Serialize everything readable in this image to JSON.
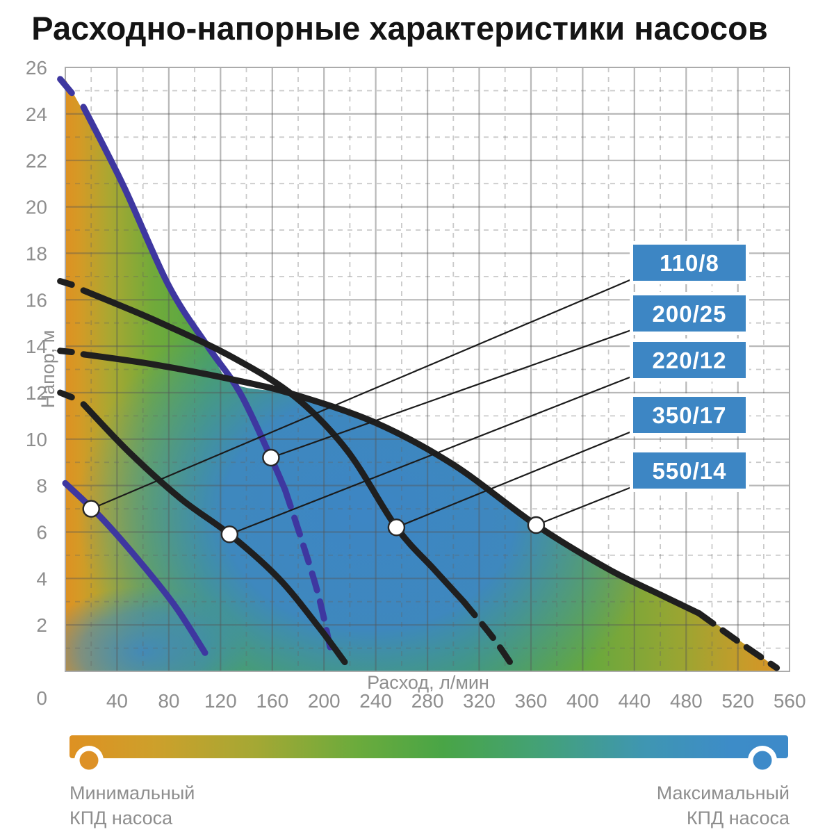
{
  "title": "Расходно-напорные характеристики насосов",
  "axes": {
    "x": {
      "label": "Расход, л/мин",
      "min": 0,
      "max": 560,
      "major_step": 40,
      "minor_step": 20,
      "ticks": [
        40,
        80,
        120,
        160,
        200,
        240,
        280,
        320,
        360,
        400,
        440,
        480,
        520,
        560
      ]
    },
    "y": {
      "label": "Напор, м",
      "min": 0,
      "max": 26,
      "major_step": 2,
      "minor_step": 1,
      "ticks": [
        0,
        2,
        4,
        6,
        8,
        10,
        12,
        14,
        16,
        18,
        20,
        22,
        24,
        26
      ]
    }
  },
  "chart_data": {
    "type": "line",
    "title": "Расходно-напорные характеристики насосов",
    "xlabel": "Расход, л/мин",
    "ylabel": "Напор, м",
    "xlim": [
      0,
      560
    ],
    "ylim": [
      0,
      26
    ],
    "grid": "major solid + minor dashed",
    "legend_position": "right side callout boxes",
    "series": [
      {
        "name": "110/8",
        "max_flow_l_min": 110,
        "max_head_m": 8,
        "color": "#3E37A0",
        "solid": [
          [
            0,
            8.1
          ],
          [
            28,
            6.6
          ],
          [
            58,
            4.7
          ],
          [
            85,
            2.8
          ],
          [
            108,
            0.8
          ]
        ],
        "marker": [
          20,
          7.0
        ]
      },
      {
        "name": "200/25",
        "max_flow_l_min": 200,
        "max_head_m": 25,
        "color": "#3E37A0",
        "start_dash": [
          [
            -4,
            25.5
          ],
          [
            5,
            24.9
          ]
        ],
        "solid": [
          [
            14,
            24.3
          ],
          [
            45,
            20.9
          ],
          [
            80,
            16.6
          ],
          [
            110,
            14.0
          ],
          [
            135,
            12.0
          ],
          [
            159,
            9.2
          ],
          [
            170,
            7.8
          ]
        ],
        "dash_tail": [
          [
            170,
            7.8
          ],
          [
            183,
            5.6
          ],
          [
            196,
            3.2
          ],
          [
            206,
            0.7
          ]
        ],
        "marker": [
          159,
          9.2
        ]
      },
      {
        "name": "220/12",
        "max_flow_l_min": 220,
        "max_head_m": 12,
        "color": "#1F1F1F",
        "start_dash": [
          [
            -4,
            12.0
          ],
          [
            5,
            11.8
          ]
        ],
        "solid": [
          [
            14,
            11.5
          ],
          [
            50,
            9.4
          ],
          [
            90,
            7.4
          ],
          [
            127,
            5.9
          ],
          [
            165,
            4.0
          ],
          [
            196,
            1.9
          ],
          [
            216,
            0.4
          ]
        ],
        "marker": [
          127,
          5.9
        ]
      },
      {
        "name": "350/17",
        "max_flow_l_min": 350,
        "max_head_m": 17,
        "color": "#1F1F1F",
        "start_dash": [
          [
            -4,
            16.8
          ],
          [
            5,
            16.65
          ]
        ],
        "solid": [
          [
            14,
            16.4
          ],
          [
            70,
            15.1
          ],
          [
            130,
            13.5
          ],
          [
            178,
            11.8
          ],
          [
            218,
            9.5
          ],
          [
            256,
            6.2
          ],
          [
            285,
            4.4
          ],
          [
            308,
            3.0
          ]
        ],
        "dash_tail": [
          [
            308,
            3.0
          ],
          [
            330,
            1.5
          ],
          [
            345,
            0.3
          ]
        ],
        "marker": [
          256,
          6.2
        ]
      },
      {
        "name": "550/14",
        "max_flow_l_min": 550,
        "max_head_m": 14,
        "color": "#1F1F1F",
        "start_dash": [
          [
            -4,
            13.8
          ],
          [
            5,
            13.75
          ]
        ],
        "solid": [
          [
            14,
            13.65
          ],
          [
            70,
            13.2
          ],
          [
            135,
            12.5
          ],
          [
            178,
            11.9
          ],
          [
            240,
            10.7
          ],
          [
            300,
            8.9
          ],
          [
            364,
            6.3
          ],
          [
            420,
            4.4
          ],
          [
            460,
            3.3
          ],
          [
            490,
            2.5
          ]
        ],
        "dash_tail": [
          [
            490,
            2.5
          ],
          [
            520,
            1.3
          ],
          [
            550,
            0.15
          ]
        ],
        "marker": [
          364,
          6.3
        ]
      }
    ],
    "envelope": [
      [
        0,
        25.5
      ],
      [
        45,
        20.9
      ],
      [
        80,
        16.6
      ],
      [
        110,
        14.0
      ],
      [
        130,
        12.4
      ],
      [
        178,
        11.9
      ],
      [
        240,
        10.7
      ],
      [
        300,
        8.9
      ],
      [
        364,
        6.3
      ],
      [
        420,
        4.4
      ],
      [
        490,
        2.5
      ],
      [
        550,
        0.15
      ]
    ],
    "efficiency_field": {
      "description": "background shading = pump efficiency, orange low to blue high",
      "base_gradient": [
        [
          "0",
          "#DE9122"
        ],
        [
          "0.02",
          "#D49A26"
        ],
        [
          "0.06",
          "#ABA731"
        ],
        [
          "0.12",
          "#72AA3A"
        ],
        [
          "0.20",
          "#4FA747"
        ],
        [
          "0.55",
          "#47A34B"
        ],
        [
          "0.72",
          "#66A83E"
        ],
        [
          "0.85",
          "#9AA532"
        ],
        [
          "0.94",
          "#C89B2A"
        ],
        [
          "1",
          "#DE9122"
        ]
      ],
      "high_efficiency_color": "#3D86C4"
    }
  },
  "callouts": {
    "box_color": "#3D86C4",
    "labels": [
      "110/8",
      "200/25",
      "220/12",
      "350/17",
      "550/14"
    ]
  },
  "legend": {
    "gradient": [
      [
        "0",
        "#DE9122"
      ],
      [
        "0.12",
        "#CDA02B"
      ],
      [
        "0.26",
        "#A4A834"
      ],
      [
        "0.40",
        "#6BAB3C"
      ],
      [
        "0.52",
        "#49A546"
      ],
      [
        "0.66",
        "#43A179"
      ],
      [
        "0.80",
        "#3F96B2"
      ],
      [
        "0.92",
        "#3D8CC8"
      ],
      [
        "1",
        "#3D8AC9"
      ]
    ],
    "min_marker_color": "#DD9126",
    "max_marker_color": "#3D8AC9",
    "min": {
      "line1": "Минимальный",
      "line2": "КПД насоса"
    },
    "max": {
      "line1": "Максимальный",
      "line2": "КПД насоса"
    }
  }
}
